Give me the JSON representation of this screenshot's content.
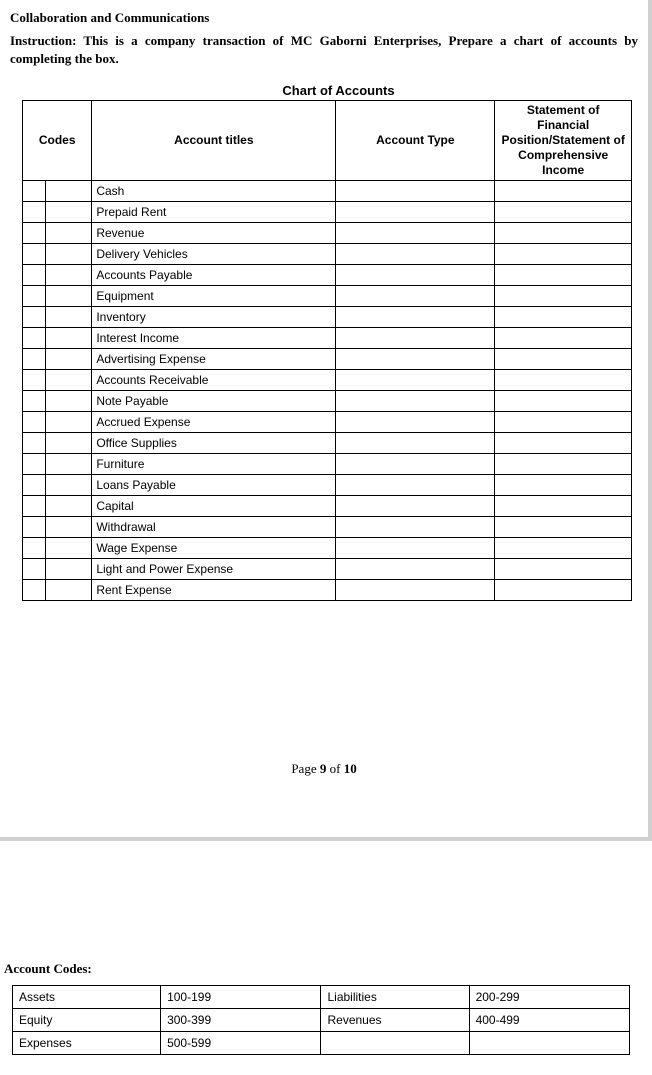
{
  "header": {
    "section_title": "Collaboration and Communications",
    "instruction": "Instruction: This is a company transaction of MC Gaborni Enterprises, Prepare a chart of accounts by completing the box."
  },
  "chart": {
    "title": "Chart of Accounts",
    "columns": {
      "codes": "Codes",
      "titles": "Account titles",
      "type": "Account Type",
      "statement_l1": "Statement of Financial",
      "statement_l2": "Position/Statement of",
      "statement_l3": "Comprehensive Income"
    },
    "rows": [
      {
        "title": "Cash"
      },
      {
        "title": "Prepaid Rent"
      },
      {
        "title": "Revenue"
      },
      {
        "title": "Delivery Vehicles"
      },
      {
        "title": "Accounts Payable"
      },
      {
        "title": "Equipment"
      },
      {
        "title": "Inventory"
      },
      {
        "title": "Interest Income"
      },
      {
        "title": "Advertising Expense"
      },
      {
        "title": "Accounts Receivable"
      },
      {
        "title": "Note Payable"
      },
      {
        "title": "Accrued Expense"
      },
      {
        "title": "Office Supplies"
      },
      {
        "title": "Furniture"
      },
      {
        "title": "Loans Payable"
      },
      {
        "title": "Capital"
      },
      {
        "title": "Withdrawal"
      },
      {
        "title": "Wage Expense"
      },
      {
        "title": "Light and Power Expense"
      },
      {
        "title": "Rent Expense"
      }
    ]
  },
  "pagination": {
    "prefix": "Page ",
    "current": "9",
    "mid": " of ",
    "total": "10"
  },
  "account_codes": {
    "heading": "Account Codes:",
    "rows": [
      {
        "c1": "Assets",
        "c2": "100-199",
        "c3": "Liabilities",
        "c4": "200-299"
      },
      {
        "c1": "Equity",
        "c2": "300-399",
        "c3": "Revenues",
        "c4": "400-499"
      },
      {
        "c1": "Expenses",
        "c2": "500-599",
        "c3": "",
        "c4": ""
      }
    ]
  }
}
